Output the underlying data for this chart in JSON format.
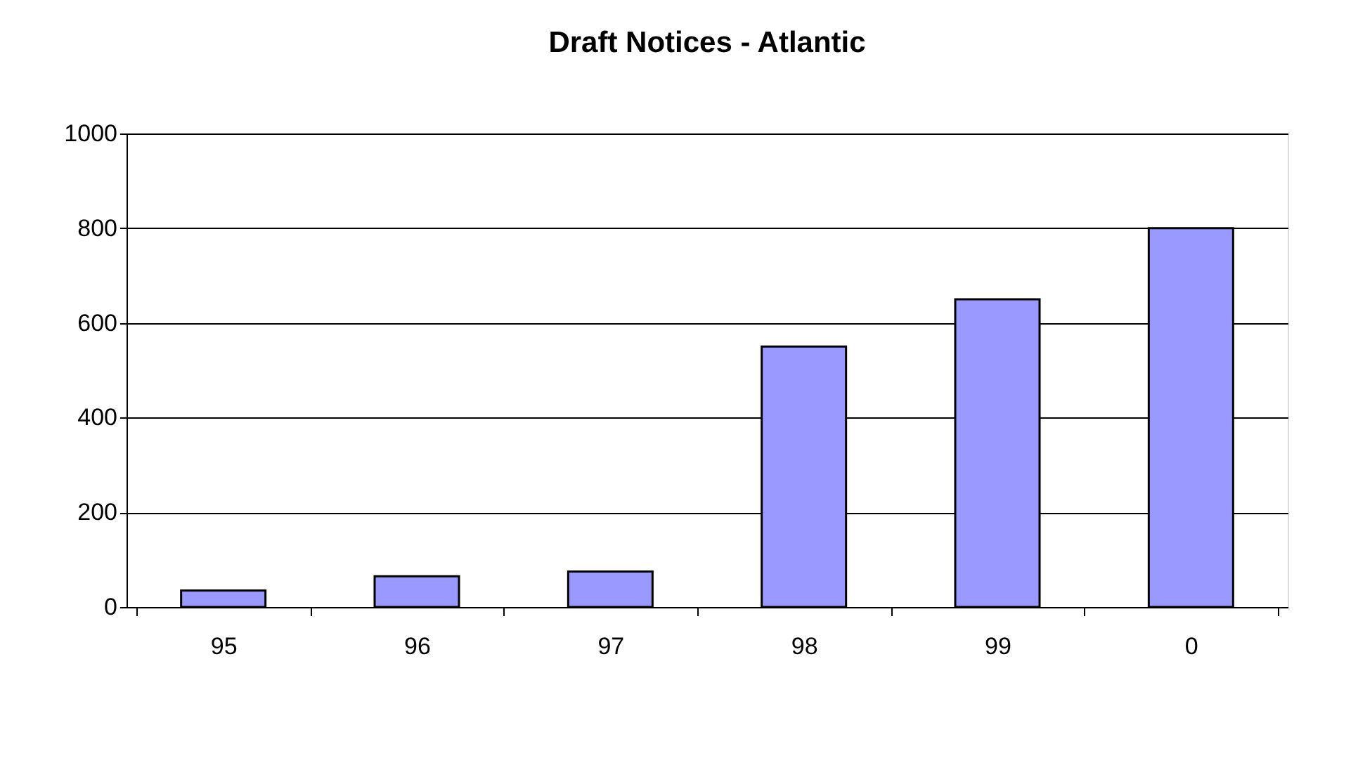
{
  "chart_data": {
    "type": "bar",
    "title": "Draft Notices - Atlantic",
    "categories": [
      "95",
      "96",
      "97",
      "98",
      "99",
      "0"
    ],
    "values": [
      35,
      65,
      75,
      550,
      650,
      800
    ],
    "color": "#9999ff",
    "ylim": [
      0,
      1000
    ],
    "yticks": [
      0,
      200,
      400,
      600,
      800,
      1000
    ],
    "grid": "y"
  }
}
